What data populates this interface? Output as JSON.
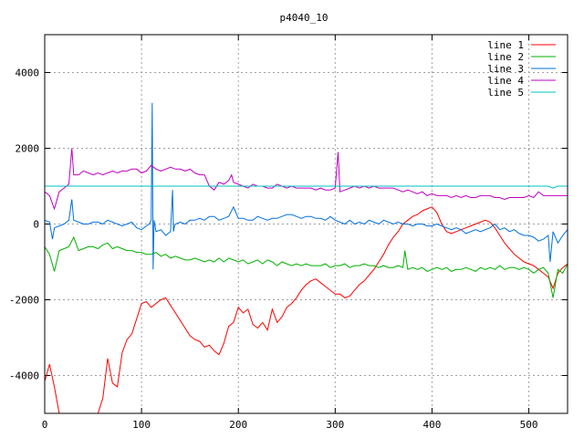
{
  "chart_data": {
    "type": "line",
    "title": "p4040_10",
    "xlabel": "",
    "ylabel": "",
    "xlim": [
      0,
      540
    ],
    "ylim": [
      -5000,
      5000
    ],
    "x_ticks": [
      0,
      100,
      200,
      300,
      400,
      500
    ],
    "y_ticks": [
      -4000,
      -2000,
      0,
      2000,
      4000
    ],
    "grid": true,
    "legend_position": "top-right",
    "series": [
      {
        "name": "line 1",
        "color": "#ff0000",
        "x": [
          0,
          5,
          10,
          15,
          20,
          25,
          30,
          35,
          40,
          45,
          50,
          55,
          60,
          65,
          70,
          75,
          80,
          85,
          90,
          95,
          100,
          105,
          110,
          115,
          120,
          125,
          130,
          135,
          140,
          145,
          150,
          155,
          160,
          165,
          170,
          175,
          180,
          185,
          190,
          195,
          200,
          205,
          210,
          215,
          220,
          225,
          230,
          235,
          240,
          245,
          250,
          255,
          260,
          265,
          270,
          275,
          280,
          285,
          290,
          295,
          300,
          305,
          310,
          315,
          320,
          325,
          330,
          335,
          340,
          345,
          350,
          355,
          360,
          365,
          370,
          375,
          380,
          385,
          390,
          395,
          400,
          405,
          410,
          415,
          420,
          425,
          430,
          435,
          440,
          445,
          450,
          455,
          460,
          465,
          470,
          475,
          480,
          485,
          490,
          495,
          500,
          505,
          510,
          515,
          520,
          525,
          530,
          535,
          540
        ],
        "values": [
          -4150,
          -3700,
          -4300,
          -5000,
          -5000,
          -5000,
          -5000,
          -5000,
          -5000,
          -5000,
          -5000,
          -5000,
          -4600,
          -3550,
          -4200,
          -4300,
          -3400,
          -3050,
          -2900,
          -2500,
          -2100,
          -2050,
          -2200,
          -2100,
          -2000,
          -1950,
          -2150,
          -2350,
          -2550,
          -2750,
          -2950,
          -3050,
          -3100,
          -3250,
          -3200,
          -3350,
          -3450,
          -3150,
          -2700,
          -2600,
          -2200,
          -2350,
          -2250,
          -2650,
          -2750,
          -2600,
          -2800,
          -2250,
          -2600,
          -2450,
          -2200,
          -2100,
          -1950,
          -1750,
          -1600,
          -1500,
          -1450,
          -1550,
          -1650,
          -1750,
          -1850,
          -1850,
          -1950,
          -1900,
          -1750,
          -1600,
          -1500,
          -1350,
          -1200,
          -1000,
          -800,
          -550,
          -350,
          -200,
          0,
          100,
          200,
          250,
          350,
          400,
          450,
          300,
          0,
          -200,
          -250,
          -200,
          -150,
          -100,
          -50,
          0,
          50,
          100,
          50,
          -100,
          -300,
          -500,
          -650,
          -800,
          -900,
          -1000,
          -1050,
          -1100,
          -1200,
          -1300,
          -1400,
          -1700,
          -1300,
          -1150,
          -1050
        ]
      },
      {
        "name": "line 2",
        "color": "#00b000",
        "x": [
          0,
          5,
          10,
          15,
          20,
          25,
          30,
          35,
          40,
          45,
          50,
          55,
          60,
          65,
          70,
          75,
          80,
          85,
          90,
          95,
          100,
          105,
          110,
          115,
          120,
          125,
          130,
          135,
          140,
          145,
          150,
          155,
          160,
          165,
          170,
          175,
          180,
          185,
          190,
          195,
          200,
          205,
          210,
          215,
          220,
          225,
          230,
          235,
          240,
          245,
          250,
          255,
          260,
          265,
          270,
          275,
          280,
          285,
          290,
          295,
          300,
          305,
          310,
          315,
          320,
          325,
          330,
          335,
          340,
          345,
          350,
          355,
          360,
          365,
          370,
          372,
          375,
          380,
          385,
          390,
          395,
          400,
          405,
          410,
          415,
          420,
          425,
          430,
          435,
          440,
          445,
          450,
          455,
          460,
          465,
          470,
          475,
          480,
          485,
          490,
          495,
          500,
          505,
          510,
          515,
          520,
          525,
          530,
          535,
          540
        ],
        "values": [
          -600,
          -800,
          -1250,
          -700,
          -650,
          -600,
          -350,
          -700,
          -650,
          -600,
          -600,
          -650,
          -550,
          -500,
          -650,
          -600,
          -650,
          -700,
          -700,
          -750,
          -750,
          -800,
          -800,
          -750,
          -850,
          -800,
          -900,
          -850,
          -900,
          -950,
          -950,
          -900,
          -950,
          -1000,
          -950,
          -1000,
          -900,
          -1000,
          -900,
          -950,
          -1000,
          -950,
          -1050,
          -1000,
          -950,
          -1050,
          -950,
          -1000,
          -1100,
          -1000,
          -1050,
          -1100,
          -1050,
          -1100,
          -1050,
          -1100,
          -1100,
          -1100,
          -1050,
          -1150,
          -1100,
          -1100,
          -1050,
          -1150,
          -1100,
          -1100,
          -1050,
          -1100,
          -1100,
          -1150,
          -1100,
          -1150,
          -1150,
          -1100,
          -1150,
          -700,
          -1200,
          -1150,
          -1200,
          -1150,
          -1250,
          -1200,
          -1150,
          -1200,
          -1150,
          -1250,
          -1200,
          -1200,
          -1150,
          -1200,
          -1250,
          -1150,
          -1200,
          -1150,
          -1200,
          -1100,
          -1200,
          -1150,
          -1150,
          -1200,
          -1150,
          -1200,
          -1300,
          -1200,
          -1150,
          -1300,
          -1950,
          -1200,
          -1300,
          -1050
        ]
      },
      {
        "name": "line 3",
        "color": "#0070e0",
        "x": [
          0,
          5,
          8,
          10,
          15,
          20,
          25,
          28,
          30,
          35,
          40,
          45,
          50,
          55,
          60,
          65,
          70,
          75,
          80,
          85,
          90,
          95,
          100,
          105,
          108,
          110,
          111,
          112,
          113,
          115,
          120,
          125,
          130,
          132,
          133,
          134,
          135,
          140,
          145,
          150,
          155,
          160,
          165,
          170,
          175,
          180,
          185,
          190,
          195,
          200,
          205,
          210,
          215,
          220,
          225,
          230,
          235,
          240,
          245,
          250,
          255,
          260,
          265,
          270,
          275,
          280,
          285,
          290,
          295,
          300,
          305,
          310,
          315,
          320,
          325,
          330,
          335,
          340,
          345,
          350,
          355,
          360,
          365,
          370,
          375,
          380,
          385,
          390,
          395,
          400,
          405,
          410,
          415,
          420,
          425,
          430,
          435,
          440,
          445,
          450,
          455,
          460,
          465,
          470,
          475,
          480,
          485,
          490,
          495,
          500,
          505,
          510,
          515,
          520,
          522,
          525,
          530,
          535,
          540
        ],
        "values": [
          100,
          50,
          -400,
          -100,
          -50,
          0,
          100,
          650,
          100,
          50,
          0,
          0,
          50,
          50,
          0,
          100,
          50,
          0,
          -50,
          0,
          50,
          -100,
          -150,
          -50,
          0,
          100,
          3200,
          -1200,
          100,
          -200,
          -150,
          -300,
          -200,
          900,
          -200,
          -50,
          0,
          50,
          0,
          100,
          100,
          150,
          100,
          200,
          200,
          100,
          150,
          200,
          450,
          150,
          150,
          100,
          100,
          200,
          150,
          100,
          150,
          150,
          200,
          250,
          250,
          200,
          150,
          200,
          200,
          150,
          150,
          100,
          200,
          100,
          50,
          0,
          100,
          0,
          50,
          0,
          100,
          50,
          0,
          100,
          50,
          0,
          50,
          0,
          0,
          -50,
          0,
          0,
          -50,
          -50,
          0,
          -50,
          -100,
          -150,
          -100,
          -150,
          -250,
          -200,
          -150,
          -200,
          -150,
          -100,
          0,
          -150,
          -100,
          -200,
          -150,
          -250,
          -300,
          -300,
          -350,
          -450,
          -400,
          -300,
          -1000,
          -200,
          -500,
          -300,
          -150
        ]
      },
      {
        "name": "line 4",
        "color": "#c000c0",
        "x": [
          0,
          5,
          10,
          15,
          20,
          25,
          28,
          30,
          35,
          40,
          45,
          50,
          55,
          60,
          65,
          70,
          75,
          80,
          85,
          90,
          95,
          100,
          105,
          110,
          115,
          120,
          125,
          130,
          135,
          140,
          145,
          150,
          155,
          160,
          165,
          170,
          175,
          180,
          185,
          190,
          193,
          195,
          200,
          205,
          210,
          215,
          220,
          225,
          230,
          235,
          240,
          245,
          250,
          255,
          260,
          265,
          270,
          275,
          280,
          285,
          290,
          295,
          300,
          303,
          305,
          310,
          315,
          320,
          325,
          330,
          335,
          340,
          345,
          350,
          355,
          360,
          365,
          370,
          375,
          380,
          385,
          390,
          395,
          400,
          405,
          410,
          415,
          420,
          425,
          430,
          435,
          440,
          445,
          450,
          455,
          460,
          465,
          470,
          475,
          480,
          485,
          490,
          495,
          500,
          505,
          510,
          515,
          520,
          525,
          530,
          535,
          540
        ],
        "values": [
          850,
          750,
          400,
          850,
          950,
          1050,
          2000,
          1300,
          1300,
          1400,
          1350,
          1300,
          1350,
          1300,
          1350,
          1400,
          1350,
          1400,
          1400,
          1450,
          1450,
          1350,
          1400,
          1550,
          1450,
          1400,
          1450,
          1500,
          1450,
          1450,
          1400,
          1450,
          1350,
          1300,
          1300,
          1000,
          900,
          1100,
          1050,
          1150,
          1300,
          1100,
          1050,
          1000,
          950,
          1050,
          1000,
          1000,
          950,
          950,
          1050,
          1000,
          950,
          1000,
          950,
          950,
          950,
          950,
          900,
          950,
          900,
          900,
          950,
          1900,
          850,
          900,
          950,
          1000,
          950,
          1000,
          950,
          1000,
          950,
          950,
          950,
          950,
          900,
          850,
          900,
          850,
          800,
          850,
          750,
          800,
          750,
          750,
          750,
          700,
          750,
          700,
          750,
          700,
          700,
          750,
          750,
          750,
          700,
          700,
          650,
          700,
          700,
          700,
          700,
          750,
          700,
          850,
          750,
          750,
          750,
          750,
          750,
          750
        ]
      },
      {
        "name": "line 5",
        "color": "#00c0c0",
        "x": [
          0,
          100,
          200,
          300,
          400,
          500,
          520,
          525,
          530,
          540
        ],
        "values": [
          1000,
          1000,
          1000,
          1000,
          1000,
          1000,
          1000,
          950,
          1000,
          1000
        ]
      }
    ]
  }
}
